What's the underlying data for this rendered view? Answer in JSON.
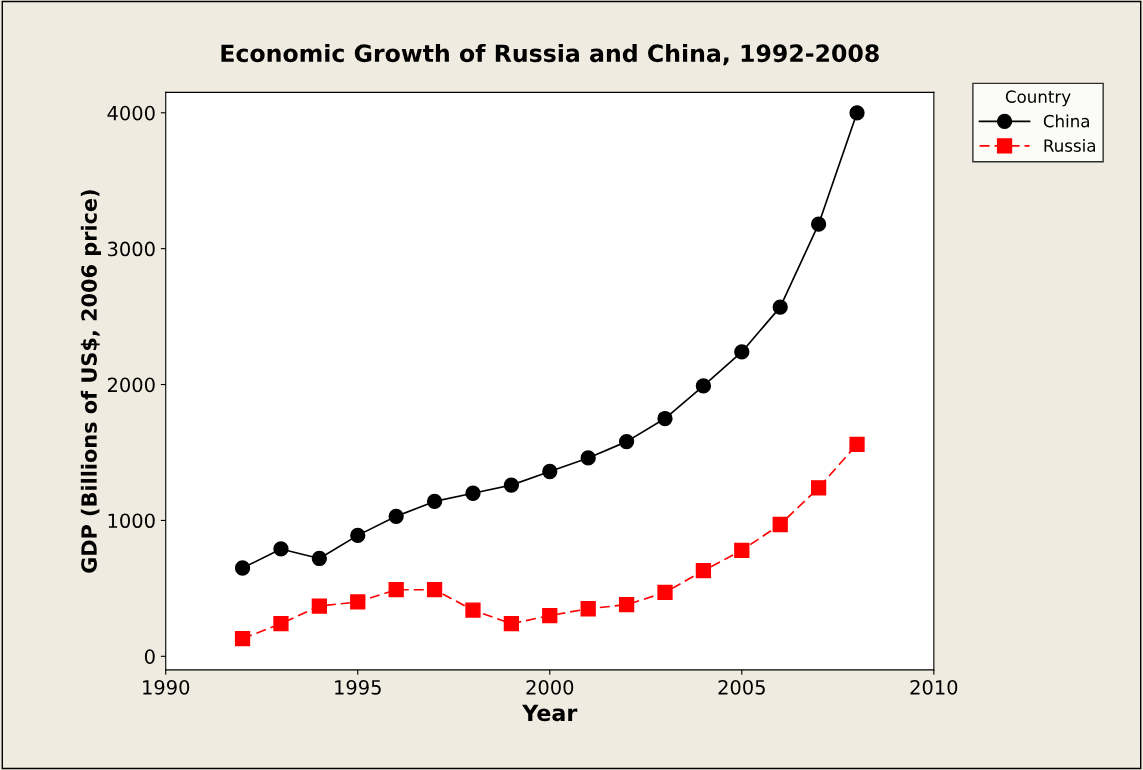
{
  "chart_data": {
    "type": "line",
    "title": "Economic Growth of Russia and China, 1992-2008",
    "xlabel": "Year",
    "ylabel": "GDP (Billions of US$, 2006 price)",
    "legend_title": "Country",
    "x": [
      1992,
      1993,
      1994,
      1995,
      1996,
      1997,
      1998,
      1999,
      2000,
      2001,
      2002,
      2003,
      2004,
      2005,
      2006,
      2007,
      2008
    ],
    "series": [
      {
        "name": "China",
        "color": "#000000",
        "marker": "circle",
        "line_style": "solid",
        "values": [
          650,
          790,
          720,
          890,
          1030,
          1140,
          1200,
          1260,
          1360,
          1460,
          1580,
          1750,
          1990,
          2240,
          2570,
          3180,
          4000
        ]
      },
      {
        "name": "Russia",
        "color": "#ff0000",
        "marker": "square",
        "line_style": "dashed",
        "values": [
          130,
          240,
          370,
          400,
          490,
          490,
          340,
          240,
          300,
          350,
          380,
          470,
          630,
          780,
          970,
          1240,
          1560
        ]
      }
    ],
    "xlim": [
      1990,
      2010
    ],
    "xticks": [
      1990,
      1995,
      2000,
      2005,
      2010
    ],
    "ylim": [
      -100,
      4150
    ],
    "yticks": [
      0,
      1000,
      2000,
      3000,
      4000
    ],
    "grid": false,
    "legend": "top right"
  }
}
